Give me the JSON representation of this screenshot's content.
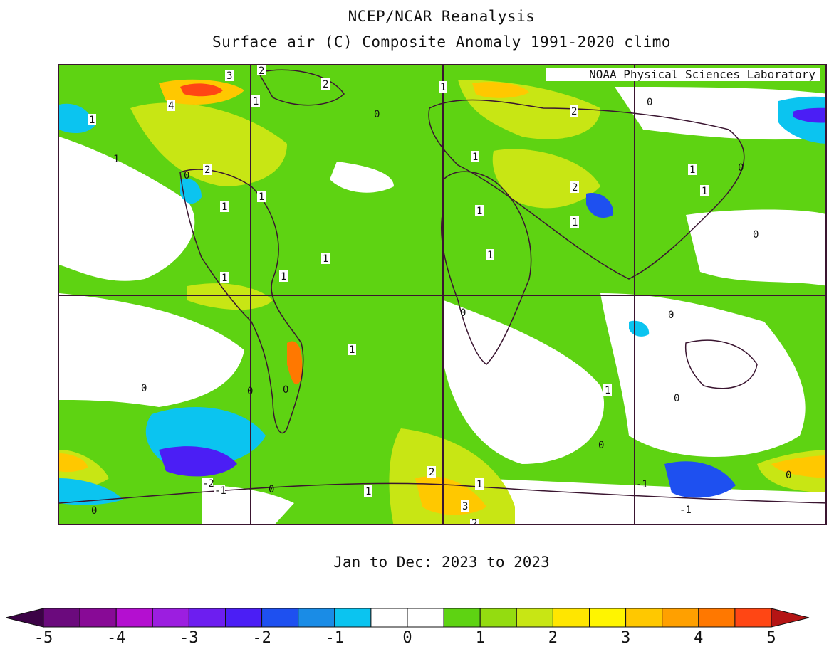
{
  "header": {
    "title": "NCEP/NCAR Reanalysis",
    "subtitle": "Surface air (C) Composite Anomaly 1991-2020 climo"
  },
  "map": {
    "credit": "NOAA Physical Sciences Laboratory",
    "period": "Jan to Dec: 2023 to 2023",
    "variable": "Surface air temperature anomaly",
    "units": "C",
    "contour_labels": [
      "3",
      "2",
      "2",
      "4",
      "1",
      "1",
      "0",
      "2",
      "1",
      "0",
      "1",
      "0",
      "2",
      "1",
      "1",
      "0",
      "1",
      "1",
      "1",
      "2",
      "1",
      "1",
      "1",
      "1",
      "0",
      "0",
      "1",
      "1",
      "1",
      "0",
      "0",
      "0",
      "0",
      "0",
      "1",
      "0",
      "2",
      "1",
      "1",
      "3",
      "2",
      "0",
      "-1",
      "-2",
      "-1",
      "0",
      "0",
      "-1"
    ]
  },
  "colorbar": {
    "levels": [
      -5,
      -4.5,
      -4,
      -3.5,
      -3,
      -2.5,
      -2,
      -1.5,
      -1,
      -0.5,
      0,
      0.5,
      1,
      1.5,
      2,
      2.5,
      3,
      3.5,
      4,
      4.5,
      5
    ],
    "tick_labels": [
      "-5",
      "-4",
      "-3",
      "-2",
      "-1",
      "0",
      "1",
      "2",
      "3",
      "4",
      "5"
    ],
    "colors": [
      "#6b0a7d",
      "#880a96",
      "#b40fd0",
      "#9c1ee0",
      "#6d1ef0",
      "#4b1ef5",
      "#1e50f0",
      "#1a8ce6",
      "#0bc4f0",
      "#ffffff",
      "#ffffff",
      "#5ed312",
      "#94dc10",
      "#c8e614",
      "#ffe600",
      "#fff500",
      "#ffc800",
      "#ffa000",
      "#ff7800",
      "#ff4614"
    ],
    "under_color": "#3c0246",
    "over_color": "#b41414"
  }
}
